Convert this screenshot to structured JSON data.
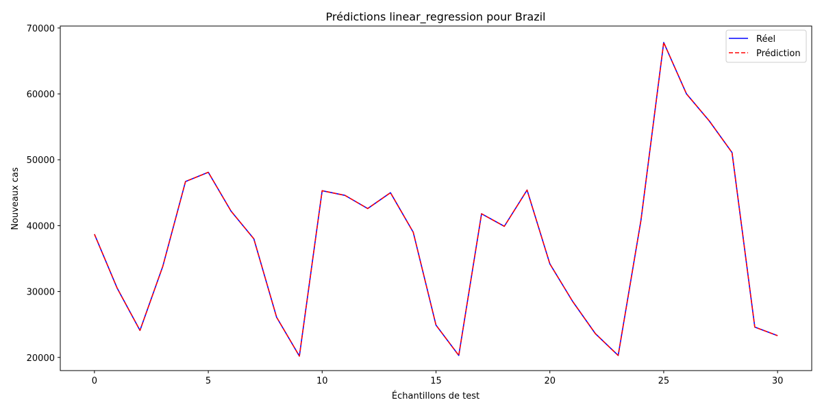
{
  "chart_data": {
    "type": "line",
    "title": "Prédictions linear_regression pour Brazil",
    "xlabel": "Échantillons de test",
    "ylabel": "Nouveaux cas",
    "xlim": [
      -1.5,
      31.5
    ],
    "ylim": [
      18000,
      70300
    ],
    "xticks": [
      0,
      5,
      10,
      15,
      20,
      25,
      30
    ],
    "yticks": [
      20000,
      30000,
      40000,
      50000,
      60000,
      70000
    ],
    "grid": false,
    "legend_position": "top-right",
    "x": [
      0,
      1,
      2,
      3,
      4,
      5,
      6,
      7,
      8,
      9,
      10,
      11,
      12,
      13,
      14,
      15,
      16,
      17,
      18,
      19,
      20,
      21,
      22,
      23,
      24,
      25,
      26,
      27,
      28,
      29,
      30
    ],
    "series": [
      {
        "name": "Réel",
        "color": "#0000ff",
        "style": "solid",
        "values": [
          38700,
          30500,
          24100,
          33800,
          46700,
          48100,
          42200,
          38000,
          26100,
          20200,
          45300,
          44600,
          42600,
          45000,
          39000,
          24900,
          20300,
          41800,
          39900,
          45400,
          34200,
          28500,
          23600,
          20300,
          40800,
          67800,
          60000,
          55900,
          51100,
          24600,
          23300
        ]
      },
      {
        "name": "Prédiction",
        "color": "#ff0000",
        "style": "dashed",
        "values": [
          38700,
          30500,
          24100,
          33800,
          46700,
          48100,
          42200,
          38000,
          26100,
          20200,
          45300,
          44600,
          42600,
          45000,
          39000,
          24900,
          20300,
          41800,
          39900,
          45400,
          34200,
          28500,
          23600,
          20300,
          40800,
          67800,
          60000,
          55900,
          51100,
          24600,
          23300
        ]
      }
    ]
  }
}
